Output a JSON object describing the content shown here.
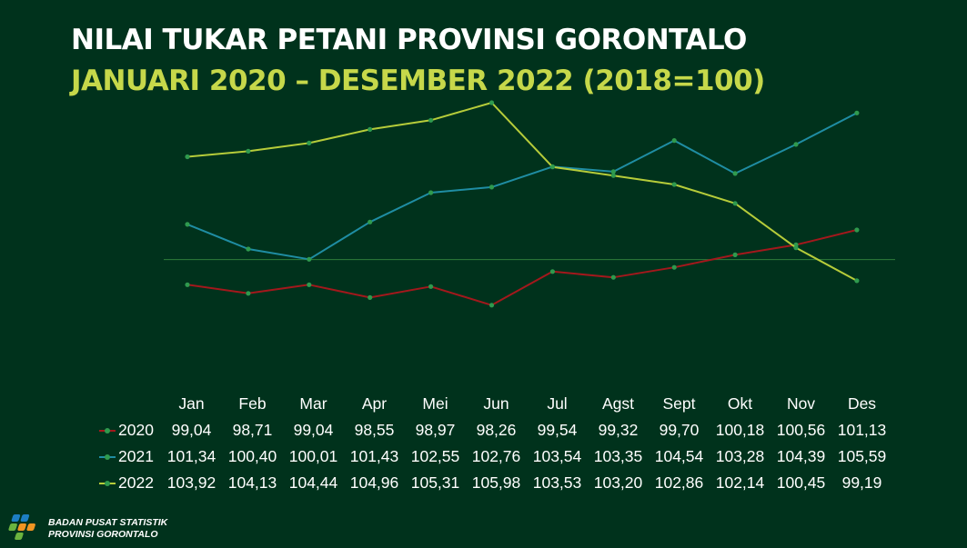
{
  "title": "NILAI TUKAR PETANI PROVINSI GORONTALO",
  "subtitle": "JANUARI 2020 – DESEMBER 2022 (2018=100)",
  "organization": {
    "line1": "BADAN PUSAT STATISTIK",
    "line2": "PROVINSI GORONTALO"
  },
  "colors": {
    "background": "#00321c",
    "title": "#ffffff",
    "subtitle": "#c6d84a",
    "baseline": "#2e7d3a"
  },
  "chart_data": {
    "type": "line",
    "title": "NILAI TUKAR PETANI PROVINSI GORONTALO",
    "subtitle": "JANUARI 2020 – DESEMBER 2022 (2018=100)",
    "categories": [
      "Jan",
      "Feb",
      "Mar",
      "Apr",
      "Mei",
      "Jun",
      "Jul",
      "Agst",
      "Sept",
      "Okt",
      "Nov",
      "Des"
    ],
    "reference_line": 100,
    "ylim": [
      96,
      106.5
    ],
    "grid": false,
    "legend": "data-table",
    "series": [
      {
        "name": "2020",
        "color": "#a3181c",
        "values": [
          99.04,
          98.71,
          99.04,
          98.55,
          98.97,
          98.26,
          99.54,
          99.32,
          99.7,
          100.18,
          100.56,
          101.13
        ]
      },
      {
        "name": "2021",
        "color": "#1f8da3",
        "values": [
          101.34,
          100.4,
          100.01,
          101.43,
          102.55,
          102.76,
          103.54,
          103.35,
          104.54,
          103.28,
          104.39,
          105.59
        ]
      },
      {
        "name": "2022",
        "color": "#b6cc3a",
        "values": [
          103.92,
          104.13,
          104.44,
          104.96,
          105.31,
          105.98,
          103.53,
          103.2,
          102.86,
          102.14,
          100.45,
          99.19
        ]
      }
    ],
    "table_labels": [
      [
        "99,04",
        "98,71",
        "99,04",
        "98,55",
        "98,97",
        "98,26",
        "99,54",
        "99,32",
        "99,70",
        "100,18",
        "100,56",
        "101,13"
      ],
      [
        "101,34",
        "100,40",
        "100,01",
        "101,43",
        "102,55",
        "102,76",
        "103,54",
        "103,35",
        "104,54",
        "103,28",
        "104,39",
        "105,59"
      ],
      [
        "103,92",
        "104,13",
        "104,44",
        "104,96",
        "105,31",
        "105,98",
        "103,53",
        "103,20",
        "102,86",
        "102,14",
        "100,45",
        "99,19"
      ]
    ]
  }
}
